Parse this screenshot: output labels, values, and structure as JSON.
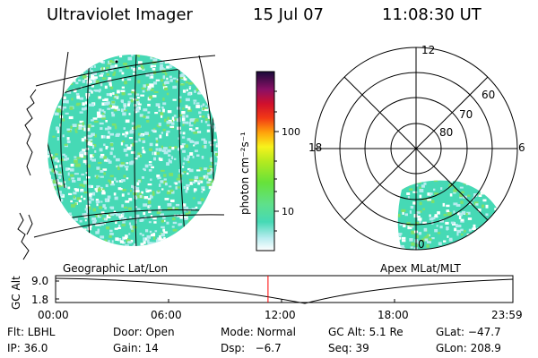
{
  "header": {
    "instrument": "Ultraviolet Imager",
    "date": "15 Jul 07",
    "time": "11:08:30 UT"
  },
  "colorbar": {
    "label": "photon cm⁻²s⁻¹",
    "ticks": [
      "100",
      "10"
    ]
  },
  "polar": {
    "mlt_labels": {
      "top": "12",
      "left": "18",
      "right": "6",
      "bottom": "0"
    },
    "lat_labels": [
      "60",
      "70",
      "80"
    ]
  },
  "panel_labels": {
    "left": "Geographic Lat/Lon",
    "right": "Apex MLat/MLT"
  },
  "timeline": {
    "ylabel": "GC Alt",
    "yticks": [
      "9.0",
      "1.8"
    ],
    "xticks": [
      "00:00",
      "06:00",
      "12:00",
      "18:00",
      "23:59"
    ],
    "current_time_fraction": 0.4645
  },
  "info": {
    "row1": {
      "flt": "Flt: LBHL",
      "door": "Door: Open",
      "mode": "Mode: Normal",
      "gcalt": "GC Alt: 5.1 Re",
      "glat": "GLat: −47.7"
    },
    "row2": {
      "ip": "IP: 36.0",
      "gain": "Gain: 14",
      "dsp": "Dsp:   −6.7",
      "seq": "Seq: 39",
      "glon": "GLon: 208.9"
    }
  },
  "colors": {
    "disk_base": "#46d9b5",
    "disk_light": "#b8ecef",
    "disk_green": "#7ee06a",
    "marker": "#ff0000"
  }
}
